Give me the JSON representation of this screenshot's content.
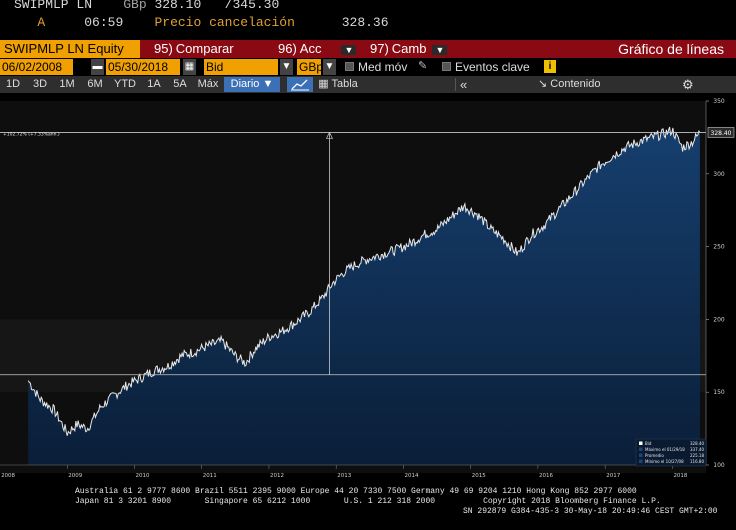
{
  "quote": {
    "ticker": "SWIPMLP LN",
    "currency": "GBp",
    "bid": "328.10",
    "ask": "/345.30",
    "flag": "A",
    "time": "06:59",
    "label": "Precio cancelación",
    "value": "328.36"
  },
  "header": {
    "security": "SWIPMLP LN Equity",
    "buttons": [
      {
        "num": "95)",
        "label": "Comparar"
      },
      {
        "num": "96)",
        "label": "Acc"
      },
      {
        "num": "97)",
        "label": "Camb"
      }
    ],
    "chart_title": "Gráfico de líneas"
  },
  "controls": {
    "start_date": "06/02/2008",
    "end_date": "05/30/2018",
    "field": "Bid",
    "currency": "GBp",
    "moving_avg_label": "Med móv",
    "events_label": "Eventos clave",
    "info": "i"
  },
  "toolbar": {
    "periods": [
      "1D",
      "3D",
      "1M",
      "6M",
      "YTD",
      "1A",
      "5A",
      "Máx"
    ],
    "frequency": "Diario ▼",
    "table_label": "Tabla",
    "content_label": "Contenido",
    "nav_icon": "«",
    "gear_icon": "⚙"
  },
  "chart_data": {
    "type": "area",
    "title": "",
    "ylim": [
      100,
      350
    ],
    "y_ticks": [
      100,
      150,
      200,
      250,
      300,
      350
    ],
    "x_ticks": [
      "2008",
      "2009",
      "2010",
      "2011",
      "2012",
      "2013",
      "2014",
      "2015",
      "2016",
      "2017",
      "2018"
    ],
    "last_value": "328.40",
    "reference_label": "+102.72% (+7.33%ann.)",
    "x": [
      2008.42,
      2008.6,
      2008.8,
      2009.0,
      2009.15,
      2009.3,
      2009.5,
      2009.7,
      2009.9,
      2010.1,
      2010.3,
      2010.5,
      2010.7,
      2010.9,
      2011.1,
      2011.3,
      2011.5,
      2011.65,
      2011.8,
      2012.0,
      2012.2,
      2012.4,
      2012.6,
      2012.8,
      2012.95,
      2013.1,
      2013.3,
      2013.5,
      2013.7,
      2013.9,
      2014.1,
      2014.3,
      2014.5,
      2014.7,
      2014.9,
      2015.1,
      2015.3,
      2015.5,
      2015.7,
      2015.9,
      2016.1,
      2016.3,
      2016.5,
      2016.7,
      2016.9,
      2017.1,
      2017.3,
      2017.5,
      2017.7,
      2017.9,
      2018.0,
      2018.15,
      2018.3,
      2018.41
    ],
    "values": [
      158,
      145,
      138,
      122,
      128,
      125,
      140,
      148,
      155,
      160,
      165,
      168,
      175,
      178,
      182,
      185,
      175,
      170,
      180,
      188,
      192,
      198,
      205,
      215,
      225,
      232,
      238,
      242,
      245,
      248,
      252,
      258,
      262,
      270,
      278,
      272,
      262,
      255,
      245,
      258,
      265,
      275,
      285,
      295,
      305,
      312,
      318,
      322,
      325,
      328,
      330,
      318,
      322,
      328.4
    ],
    "legend": [
      {
        "label": "Bid",
        "value": "328.40"
      },
      {
        "label": "Máximo el 01/29/18",
        "value": "337.40"
      },
      {
        "label": "Promedio",
        "value": "225.18"
      },
      {
        "label": "Mínimo el 10/27/08",
        "value": "116.80"
      }
    ]
  },
  "footer": {
    "line1": "Australia 61 2 9777 8600 Brazil 5511 2395 9000 Europe 44 20 7330 7500 Germany 49 69 9204 1210 Hong Kong 852 2977 6000",
    "line2": "Japan 81 3 3201 8900       Singapore 65 6212 1000       U.S. 1 212 318 2000          Copyright 2018 Bloomberg Finance L.P.",
    "line3": "SN 292879 G384-435-3 30-May-18 20:49:46 CEST GMT+2:00"
  },
  "colors": {
    "amber": "#f0a000",
    "redbar": "#8a0a14",
    "area_top": "#123a66",
    "line": "#e8e8e8",
    "selected": "#3b6fb6"
  }
}
